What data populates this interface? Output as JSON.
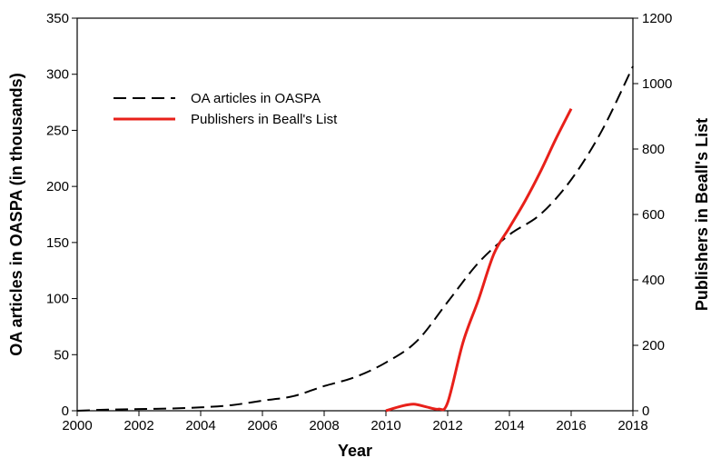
{
  "chart_data": {
    "type": "line",
    "xlabel": "Year",
    "ylabel_left": "OA articles in OASPA (in thousands)",
    "ylabel_right": "Publishers in Beall's List",
    "xlim": [
      2000,
      2018
    ],
    "ylim_left": [
      0,
      350
    ],
    "ylim_right": [
      0,
      1200
    ],
    "x_ticks": [
      2000,
      2002,
      2004,
      2006,
      2008,
      2010,
      2012,
      2014,
      2016,
      2018
    ],
    "y_left_ticks": [
      0,
      50,
      100,
      150,
      200,
      250,
      300,
      350
    ],
    "y_right_ticks": [
      0,
      200,
      400,
      600,
      800,
      1000,
      1200
    ],
    "grid": false,
    "legend_position": "top-left",
    "series": [
      {
        "name": "OA articles in OASPA",
        "axis": "left",
        "color": "#000000",
        "line_style": "dashed",
        "points": [
          [
            2000,
            0
          ],
          [
            2001,
            1
          ],
          [
            2002,
            1.5
          ],
          [
            2003,
            2
          ],
          [
            2004,
            3
          ],
          [
            2005,
            5
          ],
          [
            2006,
            9
          ],
          [
            2007,
            13
          ],
          [
            2008,
            22
          ],
          [
            2009,
            30
          ],
          [
            2010,
            43
          ],
          [
            2011,
            62
          ],
          [
            2012,
            97
          ],
          [
            2013,
            132
          ],
          [
            2014,
            157
          ],
          [
            2015,
            175
          ],
          [
            2016,
            206
          ],
          [
            2017,
            250
          ],
          [
            2018,
            307
          ]
        ]
      },
      {
        "name": "Publishers in Beall's List",
        "axis": "right",
        "color": "#e8201a",
        "line_style": "solid",
        "points": [
          [
            2010,
            0
          ],
          [
            2010.5,
            14
          ],
          [
            2010.9,
            20
          ],
          [
            2011.3,
            12
          ],
          [
            2011.7,
            5
          ],
          [
            2012,
            25
          ],
          [
            2012.5,
            210
          ],
          [
            2013,
            340
          ],
          [
            2013.5,
            480
          ],
          [
            2014,
            560
          ],
          [
            2014.5,
            640
          ],
          [
            2015,
            730
          ],
          [
            2015.5,
            830
          ],
          [
            2016,
            923
          ]
        ]
      }
    ]
  }
}
